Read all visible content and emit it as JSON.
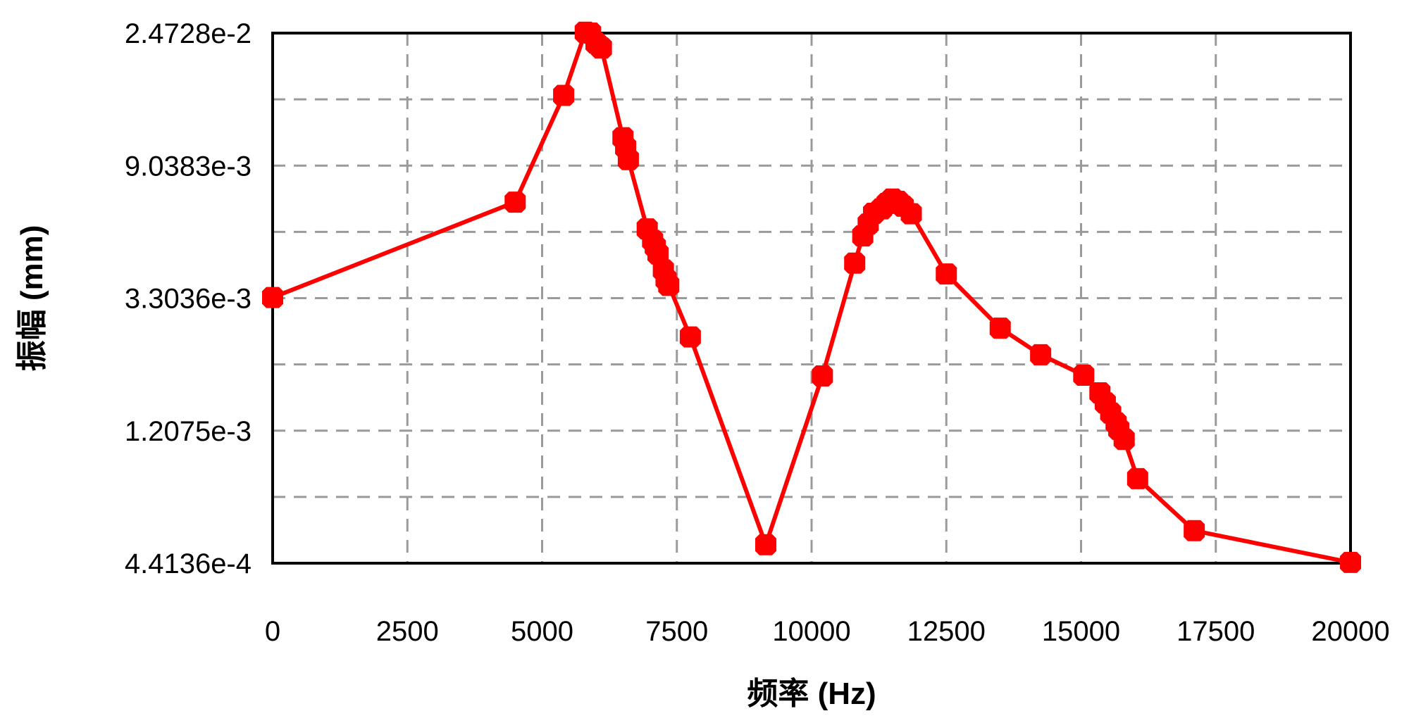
{
  "chart_data": {
    "type": "line",
    "title": "",
    "xlabel": "频率 (Hz)",
    "ylabel": "振幅 (mm)",
    "y_scale": "log",
    "xlim": [
      0,
      20000
    ],
    "ylim": [
      0.00044136,
      0.024728
    ],
    "grid": true,
    "x_ticks": [
      "0",
      "2500",
      "5000",
      "7500",
      "10000",
      "12500",
      "15000",
      "17500",
      "20000"
    ],
    "y_ticks": [
      {
        "value": 0.024728,
        "label": "2.4728e-2"
      },
      {
        "value": 0.0090383,
        "label": "9.0383e-3"
      },
      {
        "value": 0.0033036,
        "label": "3.3036e-3"
      },
      {
        "value": 0.0012075,
        "label": "1.2075e-3"
      },
      {
        "value": 0.00044136,
        "label": "4.4136e-4"
      }
    ],
    "colors": {
      "series": "#ff0000",
      "frame": "#000000",
      "grid": "#9a9a9a"
    },
    "series": [
      {
        "marker": "diamond",
        "x": [
          0,
          4500,
          5400,
          5800,
          5900,
          6000,
          6100,
          6500,
          6550,
          6600,
          6950,
          7050,
          7100,
          7150,
          7250,
          7300,
          7350,
          7750,
          9150,
          10200,
          10800,
          10950,
          11050,
          11150,
          11300,
          11400,
          11500,
          11600,
          11700,
          11850,
          12500,
          13500,
          14250,
          15050,
          15350,
          15450,
          15550,
          15650,
          15700,
          15800,
          16050,
          17100,
          20000
        ],
        "y": [
          0.00332,
          0.00685,
          0.01541,
          0.0249,
          0.02473,
          0.02292,
          0.02209,
          0.01117,
          0.01037,
          0.00946,
          0.00559,
          0.00512,
          0.00488,
          0.00462,
          0.00409,
          0.00381,
          0.00364,
          0.00246,
          0.000508,
          0.00183,
          0.00431,
          0.0053,
          0.0058,
          0.00629,
          0.00651,
          0.00678,
          0.00701,
          0.00689,
          0.00664,
          0.00627,
          0.00397,
          0.00263,
          0.00215,
          0.00184,
          0.00161,
          0.00149,
          0.00138,
          0.00128,
          0.00122,
          0.00113,
          0.000839,
          0.000565,
          0.000444
        ]
      }
    ]
  }
}
